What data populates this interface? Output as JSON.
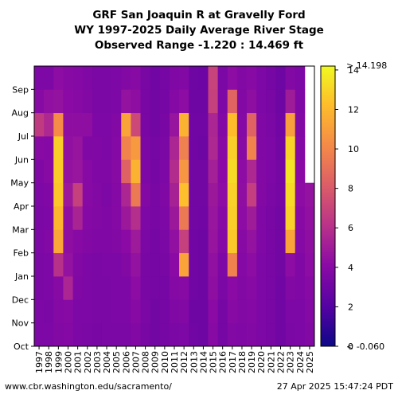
{
  "titles": {
    "line1": "GRF San Joaquin R at Gravelly Ford",
    "line2": "WY 1997-2025 Daily Average River Stage",
    "line3": "Observed Range -1.220 : 14.469 ft"
  },
  "footer": {
    "url": "www.cbr.washington.edu/sacramento/",
    "timestamp": "27 Apr 2025 15:47:24 PDT"
  },
  "chart_data": {
    "type": "heatmap",
    "x_categories": [
      "1997",
      "1998",
      "1999",
      "2000",
      "2001",
      "2002",
      "2003",
      "2004",
      "2005",
      "2006",
      "2007",
      "2008",
      "2009",
      "2010",
      "2011",
      "2012",
      "2013",
      "2014",
      "2015",
      "2016",
      "2017",
      "2018",
      "2019",
      "2020",
      "2021",
      "2022",
      "2023",
      "2024",
      "2025"
    ],
    "y_ticks": [
      "Oct",
      "Nov",
      "Dec",
      "Jan",
      "Feb",
      "Mar",
      "Apr",
      "May",
      "Jun",
      "Jul",
      "Aug",
      "Sep"
    ],
    "colorbar": {
      "min": 0,
      "max": 14.198,
      "ticks": [
        0,
        2,
        4,
        6,
        8,
        10,
        12,
        14
      ],
      "top_label": "> 14.198",
      "bottom_label": "< -0.060",
      "colormap": "plasma"
    },
    "monthly_values": [
      [
        3.6,
        3.6,
        3.5,
        3.5,
        3.6,
        3.5,
        3.6,
        3.7,
        4.0,
        6.5,
        4.0,
        3.6
      ],
      [
        3.6,
        3.5,
        3.6,
        3.6,
        3.8,
        3.6,
        3.7,
        4.0,
        3.9,
        5.6,
        4.4,
        3.6
      ],
      [
        3.8,
        3.9,
        4.0,
        6.0,
        11.3,
        11.9,
        12.5,
        12.7,
        12.8,
        10.2,
        4.5,
        4.2
      ],
      [
        3.9,
        4.0,
        5.5,
        4.5,
        4.3,
        4.3,
        4.8,
        4.5,
        4.4,
        4.3,
        4.1,
        4.0
      ],
      [
        3.6,
        3.6,
        3.7,
        3.8,
        4.0,
        5.4,
        6.8,
        4.7,
        4.6,
        4.3,
        4.0,
        3.9
      ],
      [
        3.5,
        3.6,
        3.6,
        3.6,
        3.8,
        3.9,
        4.0,
        4.0,
        3.7,
        4.3,
        3.8,
        3.7
      ],
      [
        3.4,
        3.5,
        3.5,
        3.5,
        3.7,
        3.8,
        3.8,
        3.7,
        3.7,
        3.6,
        3.5,
        3.5
      ],
      [
        3.5,
        3.5,
        3.5,
        3.6,
        3.7,
        3.7,
        3.6,
        3.7,
        3.6,
        3.6,
        3.5,
        3.5
      ],
      [
        3.5,
        3.6,
        3.6,
        3.6,
        3.8,
        3.9,
        3.9,
        4.0,
        3.9,
        3.8,
        3.6,
        3.6
      ],
      [
        3.5,
        3.6,
        3.6,
        3.8,
        4.1,
        4.8,
        5.5,
        8.3,
        9.8,
        11.2,
        4.5,
        3.8
      ],
      [
        3.8,
        4.0,
        4.2,
        4.5,
        4.9,
        5.9,
        9.4,
        11.8,
        10.8,
        7.2,
        4.3,
        4.0
      ],
      [
        3.4,
        3.5,
        3.4,
        3.4,
        3.5,
        3.6,
        3.8,
        3.6,
        3.5,
        3.4,
        3.4,
        3.4
      ],
      [
        3.2,
        3.2,
        3.3,
        3.3,
        3.3,
        3.4,
        3.4,
        3.3,
        3.3,
        3.2,
        3.2,
        3.1
      ],
      [
        3.3,
        3.3,
        3.3,
        3.4,
        3.5,
        3.6,
        3.7,
        3.6,
        3.5,
        3.4,
        3.3,
        3.3
      ],
      [
        3.5,
        3.7,
        3.9,
        4.1,
        4.4,
        4.8,
        5.3,
        5.8,
        5.5,
        4.6,
        3.9,
        3.7
      ],
      [
        3.6,
        3.8,
        4.0,
        11.2,
        6.8,
        9.4,
        12.3,
        10.6,
        9.7,
        11.8,
        4.2,
        3.8
      ],
      [
        3.1,
        3.0,
        3.1,
        3.1,
        3.1,
        3.2,
        3.2,
        3.2,
        3.1,
        3.1,
        3.0,
        3.0
      ],
      [
        3.0,
        3.0,
        3.0,
        3.0,
        3.0,
        3.1,
        3.2,
        3.2,
        3.0,
        3.1,
        3.0,
        2.9
      ],
      [
        4.0,
        4.1,
        4.3,
        4.4,
        4.6,
        4.7,
        4.8,
        5.2,
        5.6,
        5.5,
        6.8,
        6.9
      ],
      [
        3.3,
        3.3,
        3.5,
        3.6,
        3.9,
        4.0,
        4.2,
        4.1,
        4.0,
        3.8,
        3.6,
        3.5
      ],
      [
        3.8,
        4.0,
        4.1,
        9.8,
        12.6,
        12.8,
        12.9,
        13.2,
        12.8,
        12.2,
        8.5,
        4.2
      ],
      [
        3.7,
        3.8,
        3.8,
        3.9,
        4.0,
        4.2,
        4.3,
        4.2,
        4.0,
        3.9,
        3.8,
        3.8
      ],
      [
        3.8,
        3.9,
        4.0,
        4.2,
        4.5,
        5.0,
        6.7,
        5.6,
        9.8,
        8.4,
        4.3,
        4.0
      ],
      [
        3.6,
        3.6,
        3.6,
        3.6,
        3.7,
        3.7,
        3.8,
        3.8,
        3.7,
        3.7,
        3.6,
        3.6
      ],
      [
        3.4,
        3.4,
        3.4,
        3.4,
        3.4,
        3.4,
        3.5,
        3.6,
        3.6,
        3.5,
        3.4,
        3.3
      ],
      [
        3.1,
        3.1,
        3.1,
        3.2,
        3.2,
        3.2,
        3.3,
        3.3,
        3.2,
        3.1,
        3.0,
        3.0
      ],
      [
        3.5,
        3.6,
        3.8,
        4.2,
        11.2,
        12.9,
        13.2,
        13.5,
        13.0,
        11.0,
        5.0,
        3.8
      ],
      [
        3.6,
        3.6,
        3.7,
        3.7,
        3.9,
        4.0,
        4.2,
        4.1,
        3.9,
        3.8,
        3.7,
        3.6
      ],
      [
        3.8,
        3.9,
        4.0,
        4.2,
        4.3,
        4.4,
        4.5,
        null,
        null,
        null,
        null,
        null
      ]
    ]
  }
}
